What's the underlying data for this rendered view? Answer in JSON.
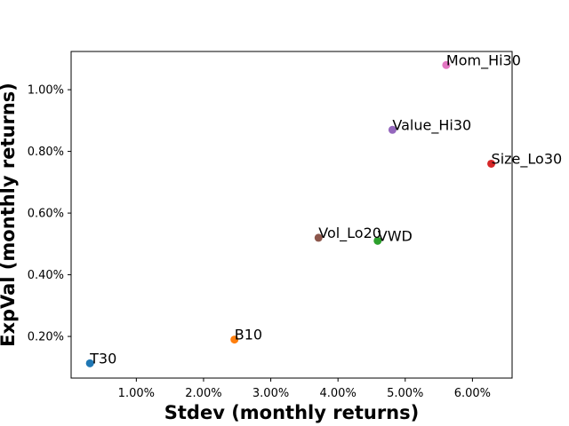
{
  "chart_data": {
    "type": "scatter",
    "title": "",
    "xlabel": "Stdev (monthly returns)",
    "ylabel": "ExpVal (monthly returns)",
    "xlim": [
      0.0003,
      0.0659
    ],
    "ylim": [
      0.00065,
      0.01124
    ],
    "x_ticks": [
      0.01,
      0.02,
      0.03,
      0.04,
      0.05,
      0.06
    ],
    "x_tick_labels": [
      "1.00%",
      "2.00%",
      "3.00%",
      "4.00%",
      "5.00%",
      "6.00%"
    ],
    "y_ticks": [
      0.002,
      0.004,
      0.006,
      0.008,
      0.01
    ],
    "y_tick_labels": [
      "0.20%",
      "0.40%",
      "0.60%",
      "0.80%",
      "1.00%"
    ],
    "grid": false,
    "legend": "none",
    "points": [
      {
        "label": "T30",
        "x": 0.0031,
        "y": 0.00113,
        "color": "#1f77b4"
      },
      {
        "label": "B10",
        "x": 0.0246,
        "y": 0.0019,
        "color": "#ff7f0e"
      },
      {
        "label": "VWD",
        "x": 0.0459,
        "y": 0.0051,
        "color": "#2ca02c"
      },
      {
        "label": "Size_Lo30",
        "x": 0.0628,
        "y": 0.0076,
        "color": "#d62728"
      },
      {
        "label": "Value_Hi30",
        "x": 0.0481,
        "y": 0.0087,
        "color": "#9467bd"
      },
      {
        "label": "Vol_Lo20",
        "x": 0.0371,
        "y": 0.0052,
        "color": "#8c564b"
      },
      {
        "label": "Mom_Hi30",
        "x": 0.0561,
        "y": 0.0108,
        "color": "#e377c2"
      }
    ]
  }
}
